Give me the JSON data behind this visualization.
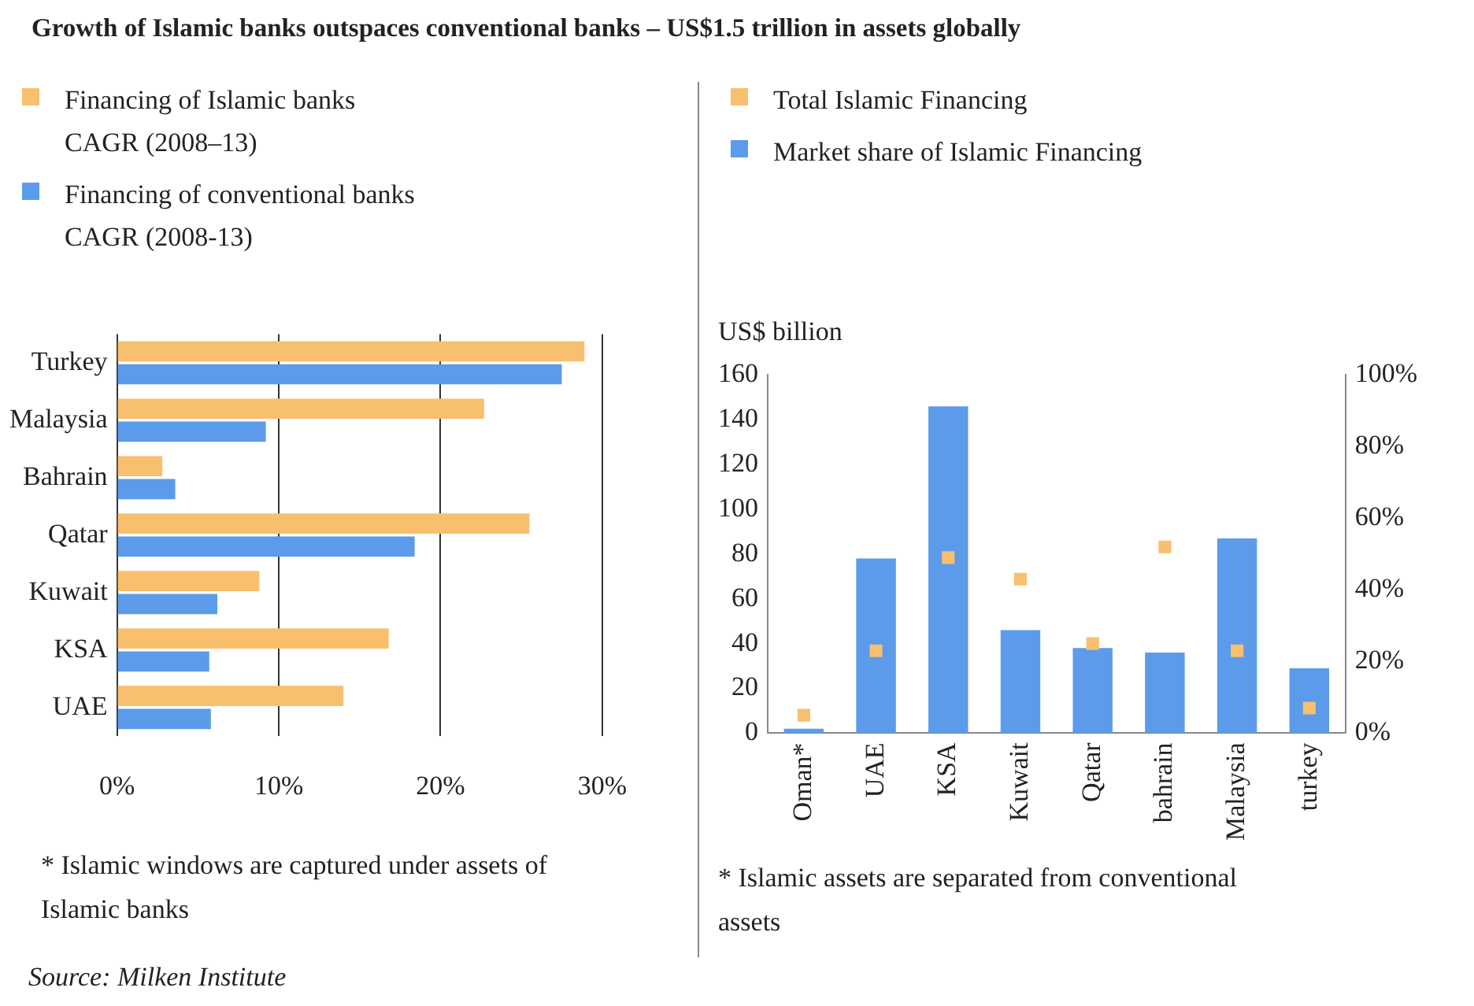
{
  "chart_data": [
    {
      "type": "bar",
      "orientation": "horizontal",
      "title": "Growth of Islamic banks outspaces conventional banks – US$1.5 trillion in assets globally",
      "categories": [
        "Turkey",
        "Malaysia",
        "Bahrain",
        "Qatar",
        "Kuwait",
        "KSA",
        "UAE"
      ],
      "series": [
        {
          "name": "Financing of Islamic banks CAGR (2008–13)",
          "color": "#f8bf6f",
          "values": [
            28.9,
            22.7,
            2.8,
            25.5,
            8.8,
            16.8,
            14.0
          ]
        },
        {
          "name": "Financing of conventional banks CAGR (2008-13)",
          "color": "#5b9bea",
          "values": [
            27.5,
            9.2,
            3.6,
            18.4,
            6.2,
            5.7,
            5.8
          ]
        }
      ],
      "xlim": [
        0,
        30
      ],
      "xticks": [
        {
          "value": 0,
          "label": "0%"
        },
        {
          "value": 10,
          "label": "10%"
        },
        {
          "value": 20,
          "label": "20%"
        },
        {
          "value": 30,
          "label": "30%"
        }
      ],
      "grid": "x",
      "legend": "top left",
      "annotations": [
        "* Islamic windows are captured under assets of Islamic banks",
        "Source: Milken Institute"
      ]
    },
    {
      "type": "bar",
      "ylabel": "US$ billion",
      "categories": [
        "Oman*",
        "UAE",
        "KSA",
        "Kuwait",
        "Qatar",
        "bahrain",
        "Malaysia",
        "turkey"
      ],
      "series": [
        {
          "name": "Total Islamic Financing",
          "type": "scatter",
          "axis": "y2",
          "color": "#f8bf6f",
          "values": [
            5,
            23,
            49,
            43,
            25,
            52,
            23,
            7
          ]
        },
        {
          "name": "Market share of Islamic Financing",
          "type": "bar",
          "color": "#5b9bea",
          "values": [
            2,
            78,
            146,
            46,
            38,
            36,
            87,
            29
          ]
        }
      ],
      "ylim": [
        0,
        160
      ],
      "yticks": [
        0,
        20,
        40,
        60,
        80,
        100,
        120,
        140,
        160
      ],
      "y2lim": [
        0,
        100
      ],
      "y2ticks": [
        {
          "value": 0,
          "label": "0%"
        },
        {
          "value": 20,
          "label": "20%"
        },
        {
          "value": 40,
          "label": "40%"
        },
        {
          "value": 60,
          "label": "60%"
        },
        {
          "value": 80,
          "label": "80%"
        },
        {
          "value": 100,
          "label": "100%"
        }
      ],
      "marker": "square",
      "grid": false,
      "legend": "top left",
      "annotations": [
        "* Islamic assets are separated from conventional assets"
      ]
    }
  ]
}
